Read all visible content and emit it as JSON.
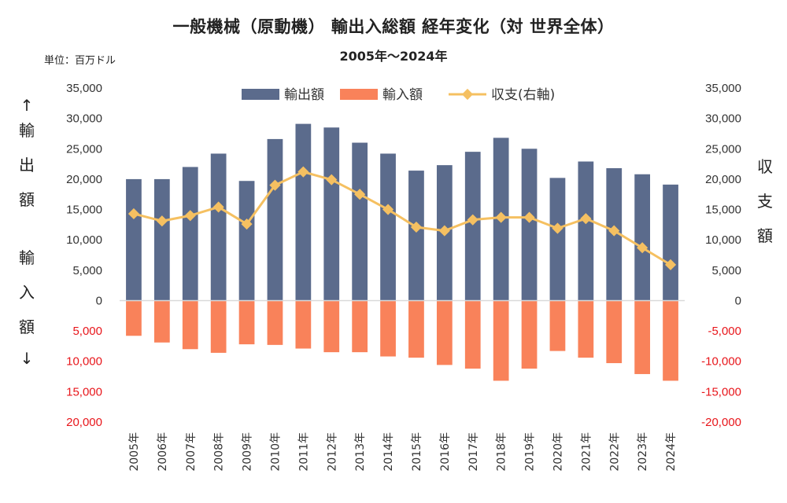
{
  "header": {
    "title": "一般機械（原動機） 輸出入総額 経年変化（対 世界全体）",
    "subtitle": "2005年～2024年",
    "unit": "単位：百万ドル"
  },
  "axis_labels": {
    "left": [
      "↑",
      "輸",
      "出",
      "額",
      "輸",
      "入",
      "額",
      "↓"
    ],
    "right": [
      "収",
      "支",
      "額"
    ]
  },
  "colors": {
    "export": "#5b6b8c",
    "import": "#f9825a",
    "balance": "#f5c061",
    "negative_tick": "#e8161b",
    "axis": "#d9d9d9"
  },
  "chart_data": {
    "type": "bar",
    "title": "一般機械（原動機） 輸出入総額 経年変化（対 世界全体）",
    "subtitle": "2005年～2024年",
    "categories": [
      "2005年",
      "2006年",
      "2007年",
      "2008年",
      "2009年",
      "2010年",
      "2011年",
      "2012年",
      "2013年",
      "2014年",
      "2015年",
      "2016年",
      "2017年",
      "2018年",
      "2019年",
      "2020年",
      "2021年",
      "2022年",
      "2023年",
      "2024年"
    ],
    "series": [
      {
        "name": "輸出額",
        "type": "bar",
        "values": [
          20000,
          20000,
          22000,
          24200,
          19700,
          26600,
          29100,
          28500,
          26000,
          24200,
          21400,
          22300,
          24500,
          26800,
          25000,
          20200,
          22900,
          21800,
          20800,
          19100
        ]
      },
      {
        "name": "輸入額",
        "type": "bar",
        "values": [
          -5800,
          -6900,
          -8000,
          -8600,
          -7200,
          -7300,
          -7900,
          -8500,
          -8500,
          -9200,
          -9400,
          -10600,
          -11200,
          -13200,
          -11200,
          -8300,
          -9400,
          -10300,
          -12100,
          -13200
        ]
      },
      {
        "name": "収支(右軸)",
        "type": "line",
        "axis": "right",
        "values": [
          14300,
          13100,
          14000,
          15400,
          12600,
          19000,
          21200,
          19900,
          17500,
          15000,
          12100,
          11500,
          13300,
          13700,
          13700,
          11900,
          13500,
          11500,
          8700,
          5900
        ]
      }
    ],
    "left_axis": {
      "range": [
        -20000,
        35000
      ],
      "ticks": [
        35000,
        30000,
        25000,
        20000,
        15000,
        10000,
        5000,
        0,
        -5000,
        -10000,
        -15000,
        -20000
      ],
      "labels": [
        "35,000",
        "30,000",
        "25,000",
        "20,000",
        "15,000",
        "10,000",
        "5,000",
        "0",
        "5,000",
        "10,000",
        "15,000",
        "20,000"
      ]
    },
    "right_axis": {
      "range": [
        -20000,
        35000
      ],
      "ticks": [
        35000,
        30000,
        25000,
        20000,
        15000,
        10000,
        5000,
        0,
        -5000,
        -10000,
        -15000,
        -20000
      ],
      "labels": [
        "35,000",
        "30,000",
        "25,000",
        "20,000",
        "15,000",
        "10,000",
        "5,000",
        "0",
        "-5,000",
        "-10,000",
        "-15,000",
        "-20,000"
      ]
    },
    "grid": false,
    "legend_position": "top-center"
  }
}
